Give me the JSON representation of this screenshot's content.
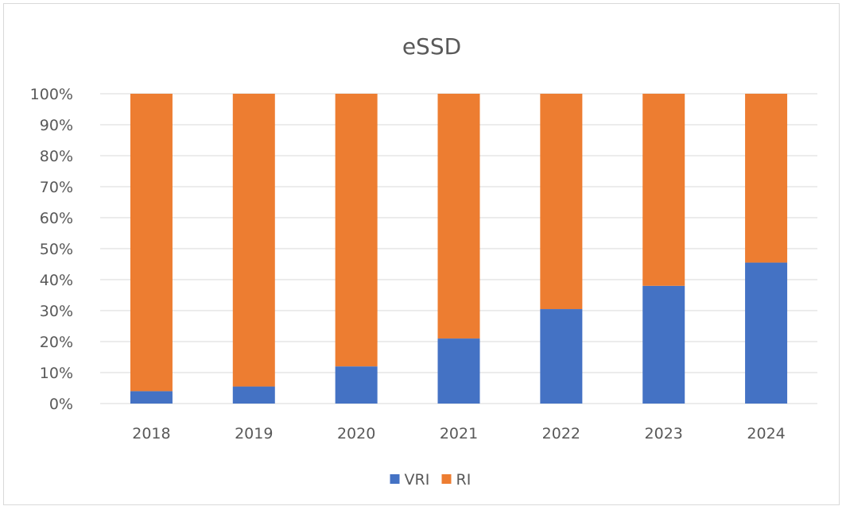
{
  "chart_data": {
    "type": "bar",
    "stacked": true,
    "title": "eSSD",
    "xlabel": "",
    "ylabel": "",
    "ylim": [
      0,
      100
    ],
    "y_ticks": [
      "0%",
      "10%",
      "20%",
      "30%",
      "40%",
      "50%",
      "60%",
      "70%",
      "80%",
      "90%",
      "100%"
    ],
    "categories": [
      "2018",
      "2019",
      "2020",
      "2021",
      "2022",
      "2023",
      "2024"
    ],
    "series": [
      {
        "name": "VRI",
        "color": "#4472c4",
        "values": [
          4,
          5.5,
          12,
          21,
          30.5,
          38,
          45.5
        ]
      },
      {
        "name": "RI",
        "color": "#ed7d31",
        "values": [
          96,
          94.5,
          88,
          79,
          69.5,
          62,
          54.5
        ]
      }
    ],
    "grid": true,
    "legend_position": "bottom"
  }
}
